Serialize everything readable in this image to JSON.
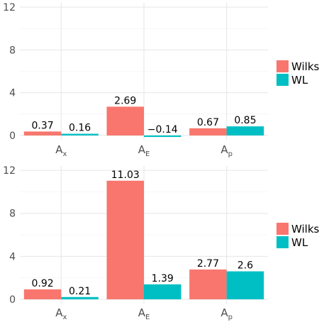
{
  "chart_data": [
    {
      "type": "bar",
      "categories": [
        "A_x",
        "A_E",
        "A_p"
      ],
      "category_labels": [
        {
          "base": "A",
          "sub": "x"
        },
        {
          "base": "A",
          "sub": "E"
        },
        {
          "base": "A",
          "sub": "p"
        }
      ],
      "series": [
        {
          "name": "Wilks",
          "color": "#F8766D",
          "values": [
            0.37,
            2.69,
            0.67
          ],
          "labels": [
            "0.37",
            "2.69",
            "0.67"
          ]
        },
        {
          "name": "WL",
          "color": "#00BFC4",
          "values": [
            0.16,
            -0.14,
            0.85
          ],
          "labels": [
            "0.16",
            "−0.14",
            "0.85"
          ]
        }
      ],
      "ylim": [
        -0.4,
        12.4
      ],
      "yticks": [
        0,
        4,
        8,
        12
      ],
      "ytick_labels": [
        "0",
        "4",
        "8",
        "12"
      ],
      "grid": true,
      "legend_placement": "right"
    },
    {
      "type": "bar",
      "categories": [
        "A_x",
        "A_E",
        "A_p"
      ],
      "category_labels": [
        {
          "base": "A",
          "sub": "x"
        },
        {
          "base": "A",
          "sub": "E"
        },
        {
          "base": "A",
          "sub": "p"
        }
      ],
      "series": [
        {
          "name": "Wilks",
          "color": "#F8766D",
          "values": [
            0.92,
            11.03,
            2.77
          ],
          "labels": [
            "0.92",
            "11.03",
            "2.77"
          ]
        },
        {
          "name": "WL",
          "color": "#00BFC4",
          "values": [
            0.21,
            1.39,
            2.6
          ],
          "labels": [
            "0.21",
            "1.39",
            "2.6"
          ]
        }
      ],
      "ylim": [
        -0.4,
        12.4
      ],
      "yticks": [
        0,
        4,
        8,
        12
      ],
      "ytick_labels": [
        "0",
        "4",
        "8",
        "12"
      ],
      "grid": true,
      "legend_placement": "right"
    }
  ]
}
